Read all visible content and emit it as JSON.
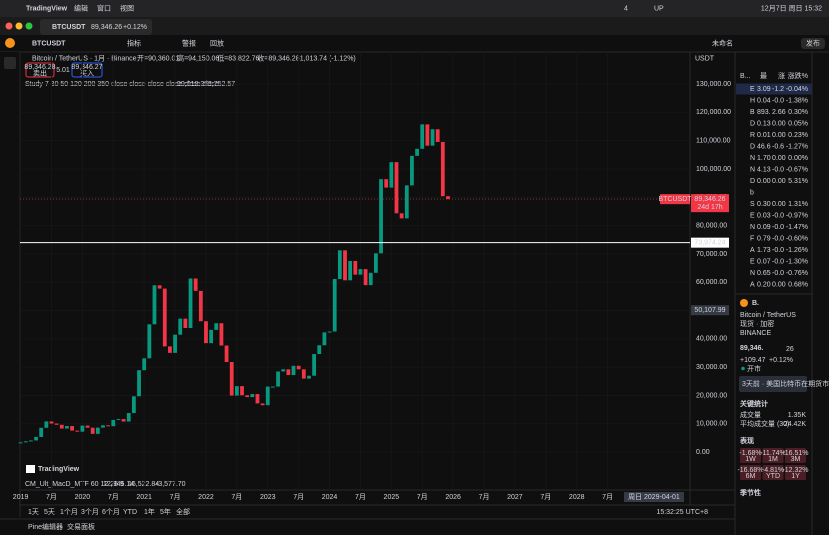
{
  "menubar": {
    "app": "TradingView",
    "menus": [
      "编辑",
      "窗口",
      "视图"
    ],
    "status": [
      "4",
      "UP"
    ],
    "clock": "12月7日 周日 15:32"
  },
  "tab": {
    "symbol": "BTCUSDT",
    "price": "89,346.26",
    "change": "+0.12%"
  },
  "toolbar": {
    "symbol": "BTCUSDT",
    "items": [
      "指标",
      "警报",
      "回放"
    ],
    "right": [
      "未命名",
      "发布"
    ]
  },
  "legend": {
    "title": "Bitcoin / TetherUS · 1月 · Binance",
    "ohlc": [
      "开=90,360.01",
      "高=94,150.06",
      "低=83,822.76",
      "收=89,346.28",
      "-1,013.74 (-1.12%)"
    ],
    "sell": "89,346.28",
    "sell_label": "卖出",
    "spread": "5.01",
    "buy": "89,346.27",
    "buy_label": "买入",
    "study": "Study 7 30 50 120 200 350 close close close close close close",
    "study_values": [
      "99,018.36",
      "73,752.57"
    ],
    "macd": "CM_Ult_MacD_MTF 60 12 26 9",
    "macd_values": [
      "12,945.14",
      "16,522.84",
      "-3,577.70"
    ],
    "logo": "TradingView"
  },
  "chart_data": {
    "type": "candlestick",
    "currency": "USDT",
    "up_color": "#089981",
    "down_color": "#f23645",
    "grid": true,
    "x": [
      "2019-01",
      "2019-02",
      "2019-03",
      "2019-04",
      "2019-05",
      "2019-06",
      "2019-07",
      "2019-08",
      "2019-09",
      "2019-10",
      "2019-11",
      "2019-12",
      "2020-01",
      "2020-02",
      "2020-03",
      "2020-04",
      "2020-05",
      "2020-06",
      "2020-07",
      "2020-08",
      "2020-09",
      "2020-10",
      "2020-11",
      "2020-12",
      "2021-01",
      "2021-02",
      "2021-03",
      "2021-04",
      "2021-05",
      "2021-06",
      "2021-07",
      "2021-08",
      "2021-09",
      "2021-10",
      "2021-11",
      "2021-12",
      "2022-01",
      "2022-02",
      "2022-03",
      "2022-04",
      "2022-05",
      "2022-06",
      "2022-07",
      "2022-08",
      "2022-09",
      "2022-10",
      "2022-11",
      "2022-12",
      "2023-01",
      "2023-02",
      "2023-03",
      "2023-04",
      "2023-05",
      "2023-06",
      "2023-07",
      "2023-08",
      "2023-09",
      "2023-10",
      "2023-11",
      "2023-12",
      "2024-01",
      "2024-02",
      "2024-03",
      "2024-04",
      "2024-05",
      "2024-06",
      "2024-07",
      "2024-08",
      "2024-09",
      "2024-10",
      "2024-11",
      "2024-12",
      "2025-01",
      "2025-02",
      "2025-03",
      "2025-04",
      "2025-05",
      "2025-06",
      "2025-07",
      "2025-08",
      "2025-09",
      "2025-10",
      "2025-11",
      "2025-12"
    ],
    "close": [
      3437,
      3816,
      4105,
      5320,
      8574,
      10818,
      10085,
      9630,
      8293,
      9199,
      7569,
      7193,
      9350,
      8599,
      6424,
      8629,
      9448,
      9138,
      11335,
      11650,
      10777,
      13781,
      19695,
      28923,
      33114,
      45137,
      58918,
      57750,
      37332,
      35041,
      41462,
      47130,
      43824,
      61318,
      56951,
      46217,
      38466,
      43160,
      45510,
      37630,
      31801,
      19942,
      23293,
      20050,
      19423,
      20490,
      17165,
      16547,
      23125,
      23141,
      28465,
      29233,
      27210,
      30472,
      29232,
      25941,
      26962,
      34639,
      37723,
      42284,
      42582,
      61130,
      71280,
      60672,
      67491,
      62678,
      64628,
      58974,
      63327,
      70215,
      96405,
      93429,
      102429,
      84350,
      82550,
      94207,
      104638,
      107135,
      115764,
      108246,
      114049,
      109556,
      90394,
      89346
    ],
    "xlim": [
      "2018-09",
      "2029-11"
    ],
    "xticks": [
      {
        "value": "2019-01",
        "label": "2019"
      },
      {
        "value": "2019-07",
        "label": "7月"
      },
      {
        "value": "2020-01",
        "label": "2020"
      },
      {
        "value": "2020-07",
        "label": "7月"
      },
      {
        "value": "2021-01",
        "label": "2021"
      },
      {
        "value": "2021-07",
        "label": "7月"
      },
      {
        "value": "2022-01",
        "label": "2022"
      },
      {
        "value": "2022-07",
        "label": "7月"
      },
      {
        "value": "2023-01",
        "label": "2023"
      },
      {
        "value": "2023-07",
        "label": "7月"
      },
      {
        "value": "2024-01",
        "label": "2024"
      },
      {
        "value": "2024-07",
        "label": "7月"
      },
      {
        "value": "2025-01",
        "label": "2025"
      },
      {
        "value": "2025-07",
        "label": "7月"
      },
      {
        "value": "2026-01",
        "label": "2026"
      },
      {
        "value": "2026-07",
        "label": "7月"
      },
      {
        "value": "2027-01",
        "label": "2027"
      },
      {
        "value": "2027-07",
        "label": "7月"
      },
      {
        "value": "2028-01",
        "label": "2028"
      },
      {
        "value": "2028-07",
        "label": "7月"
      }
    ],
    "ylim": [
      -12700,
      137800
    ],
    "yticks": [
      {
        "value": 0,
        "label": "0.00"
      },
      {
        "value": 10000,
        "label": "10,000.00"
      },
      {
        "value": 20000,
        "label": "20,000.00"
      },
      {
        "value": 30000,
        "label": "30,000.00"
      },
      {
        "value": 40000,
        "label": "40,000.00"
      },
      {
        "value": 50000,
        "label": "50,000.00"
      },
      {
        "value": 60000,
        "label": "60,000.00"
      },
      {
        "value": 70000,
        "label": "70,000.00"
      },
      {
        "value": 80000,
        "label": "80,000.00"
      },
      {
        "value": 90000,
        "label": "90,000.00"
      },
      {
        "value": 100000,
        "label": "100,000.00"
      },
      {
        "value": 110000,
        "label": "110,000.00"
      },
      {
        "value": 120000,
        "label": "120,000.00"
      },
      {
        "value": 130000,
        "label": "130,000.00"
      }
    ],
    "last": {
      "symbol": "BTCUSDT",
      "value": 89346.26,
      "label": "89,346.26",
      "countdown": "24d 17h"
    },
    "hline": {
      "value": 73974.24,
      "label": "73,974.24"
    },
    "crosshair": {
      "value": 50107.99,
      "label": "50,107.99"
    },
    "date": {
      "value": "2029-04",
      "label": "周日 2029-04-01"
    }
  },
  "watchlist": {
    "header": [
      "B...",
      "最",
      "涨",
      "涨跌%"
    ],
    "rows": [
      [
        "E",
        "3.09",
        "-1.2",
        "-0.04%"
      ],
      [
        "H",
        "0.04",
        "-0.0",
        "-1.38%"
      ],
      [
        "B",
        "893.",
        "2.66",
        "0.30%"
      ],
      [
        "D",
        "0.13",
        "0.00",
        "0.05%"
      ],
      [
        "R",
        "0.01",
        "0.00",
        "0.23%"
      ],
      [
        "D",
        "46.6",
        "-0.6",
        "-1.27%"
      ],
      [
        "N",
        "1.70",
        "0.00",
        "0.00%"
      ],
      [
        "N",
        "4.13",
        "-0.0",
        "-0.67%"
      ],
      [
        "D",
        "0.00",
        "0.00",
        "5.31%"
      ],
      [
        "b",
        "",
        "",
        ""
      ],
      [
        "S",
        "0.30",
        "0.00",
        "1.31%"
      ],
      [
        "E",
        "0.03",
        "-0.0",
        "-0.97%"
      ],
      [
        "N",
        "0.09",
        "-0.0",
        "-1.47%"
      ],
      [
        "F",
        "0.79",
        "-0.0",
        "-0.60%"
      ],
      [
        "A",
        "1.73",
        "-0.0",
        "-1.26%"
      ],
      [
        "E",
        "0.07",
        "-0.0",
        "-1.30%"
      ],
      [
        "N",
        "0.65",
        "-0.0",
        "-0.76%"
      ],
      [
        "A",
        "0.20",
        "0.00",
        "0.68%"
      ]
    ]
  },
  "details": {
    "symbol": "B.",
    "name": "Bitcoin / TetherUS",
    "tags": "现货 · 加密",
    "exchange": "BINANCE",
    "price": "89,346.",
    "price_tail": "26",
    "change": "+109.47",
    "change_pct": "+0.12%",
    "status": "开市",
    "news": "3天前 · 美国比特币在期货市场的...",
    "stats_title": "关键统计",
    "stats": [
      [
        "成交量",
        "1.35K"
      ],
      [
        "平均成交量 (30)",
        "24.42K"
      ]
    ],
    "perf_title": "表现",
    "perf": [
      [
        "-1.68%",
        "1W"
      ],
      [
        "-11.74%",
        "1M"
      ],
      [
        "-16.51%",
        "3M"
      ],
      [
        "-16.68%",
        "6M"
      ],
      [
        "-4.81%",
        "YTD"
      ],
      [
        "-12.32%",
        "1Y"
      ]
    ],
    "season": "季节性"
  },
  "bottom": {
    "ranges": [
      "1天",
      "5天",
      "1个月",
      "3个月",
      "6个月",
      "YTD",
      "1年",
      "5年",
      "全部"
    ],
    "time": "15:32:25 UTC+8",
    "panels": [
      "Pine编辑器",
      "交易面板"
    ]
  }
}
